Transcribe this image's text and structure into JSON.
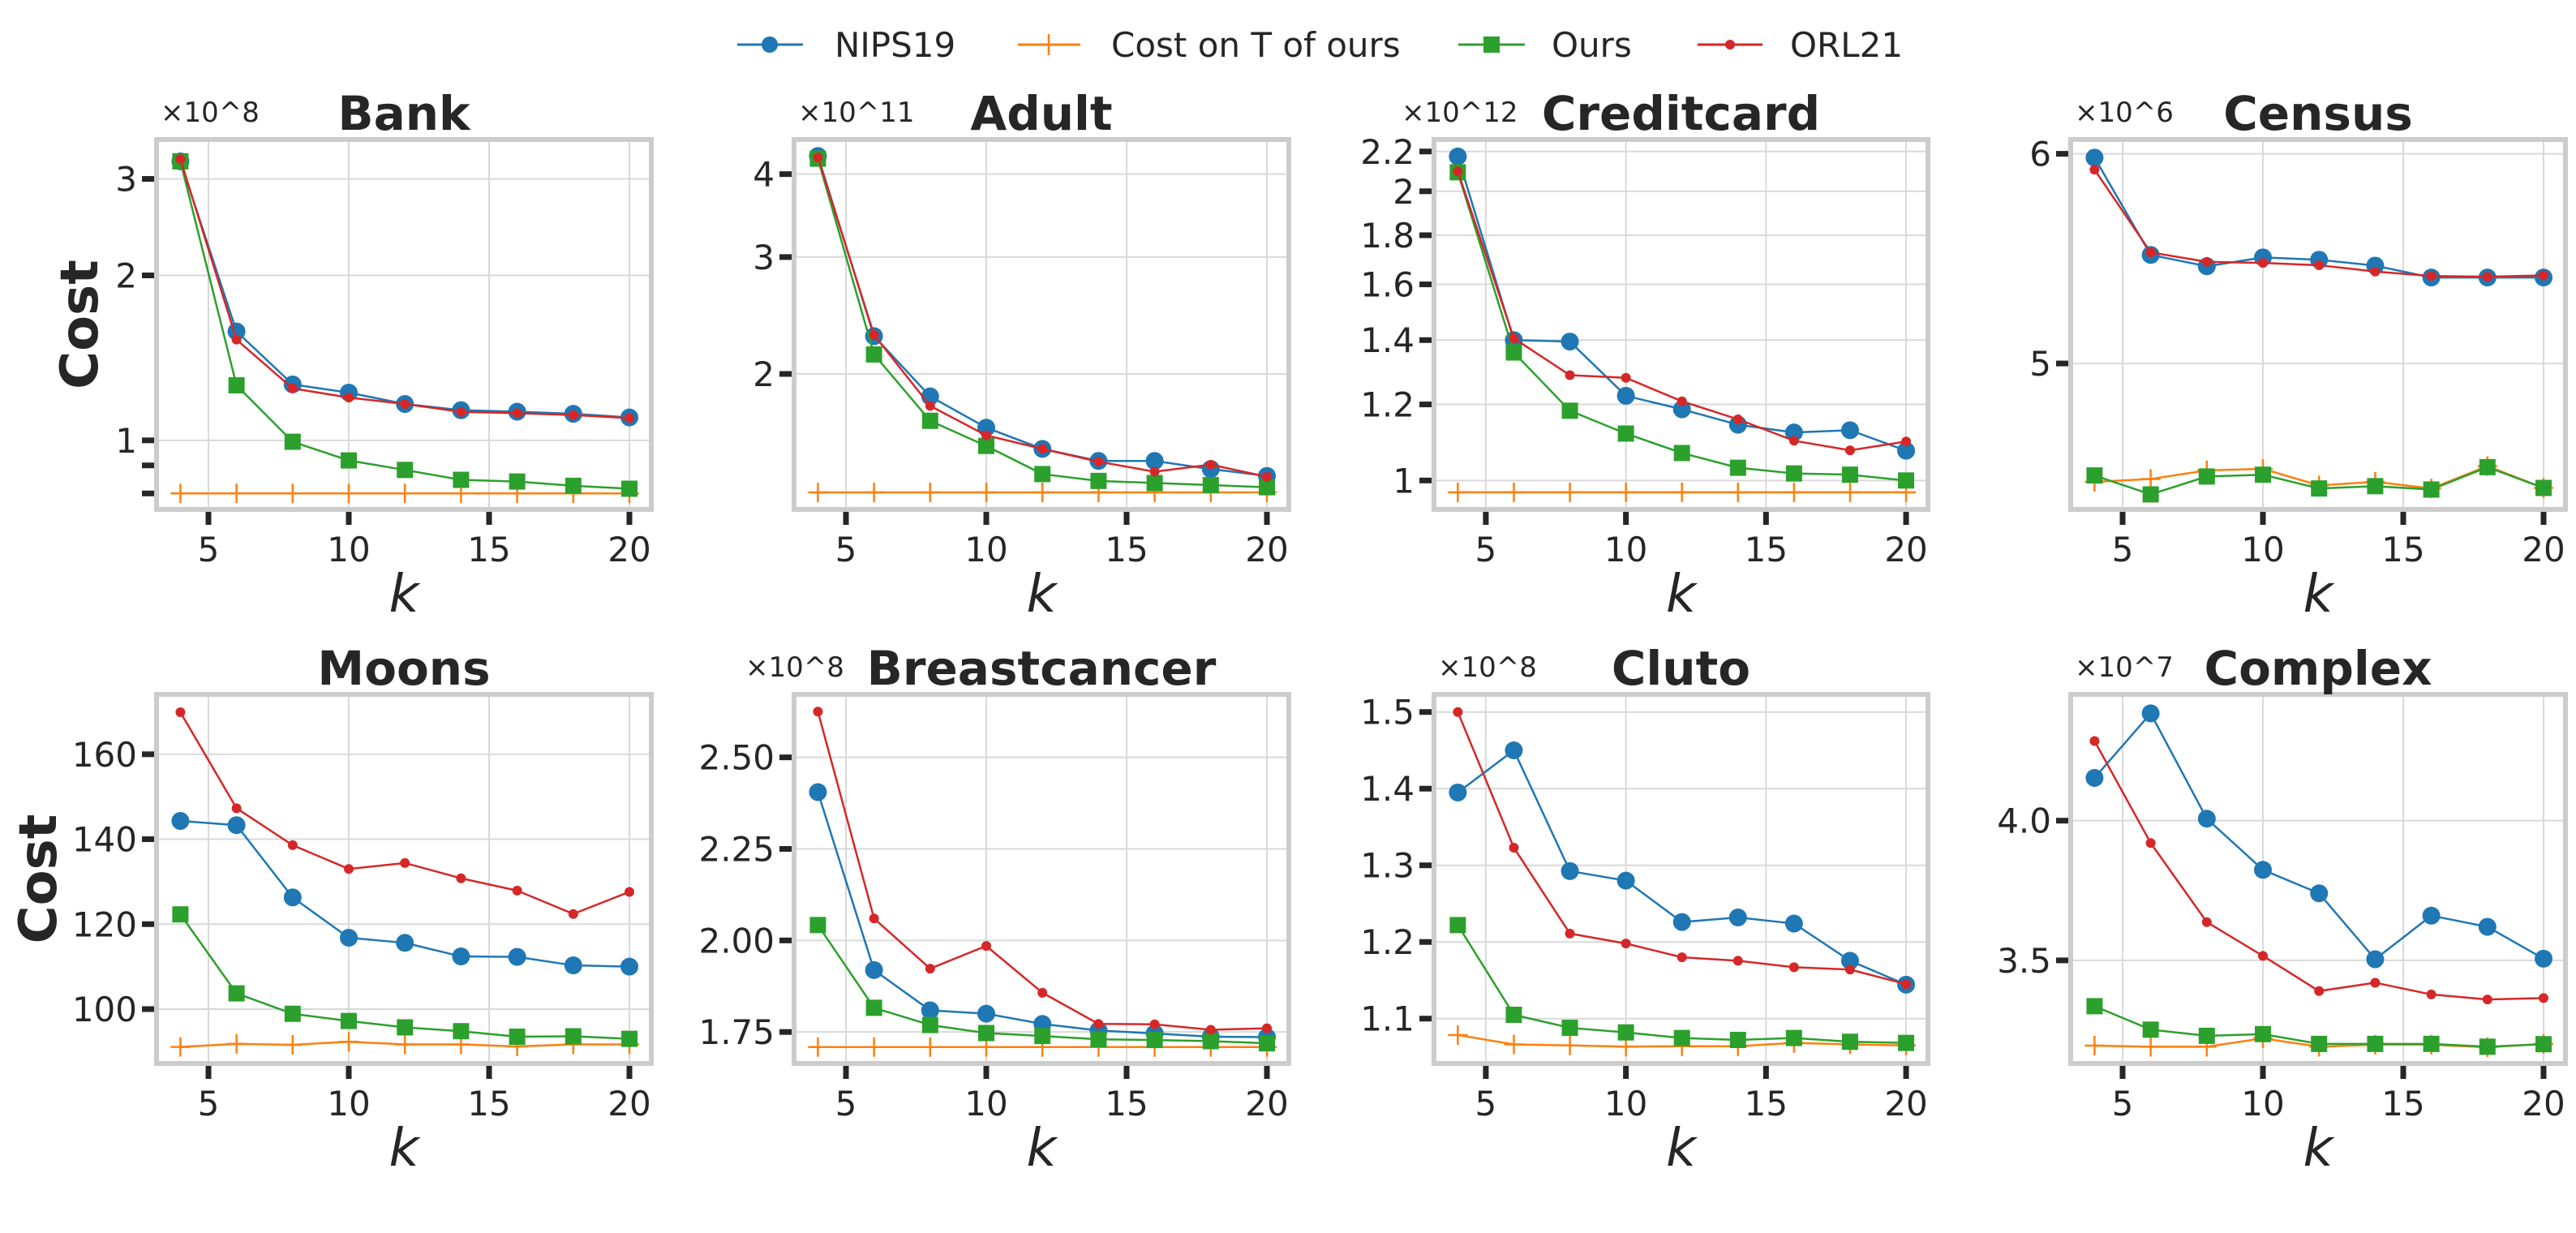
{
  "legend": {
    "placement": "top-center",
    "items": [
      {
        "label": "NIPS19",
        "color": "#1f77b4",
        "marker": "circle"
      },
      {
        "label": "Cost on T of ours",
        "color": "#ff7f0e",
        "marker": "plus"
      },
      {
        "label": "Ours",
        "color": "#2ca02c",
        "marker": "square"
      },
      {
        "label": "ORL21",
        "color": "#d62728",
        "marker": "small-dot"
      }
    ]
  },
  "chart_data": [
    {
      "type": "line",
      "title": "Bank",
      "xlabel": "k",
      "ylabel": "Cost",
      "y_multiplier": "×10^8",
      "y_scale": "log",
      "xlim": [
        3.15,
        20.78
      ],
      "ylim": [
        0.748,
        3.54
      ],
      "grid": true,
      "xticks": [
        5,
        10,
        15,
        20
      ],
      "xtick_labels": [
        "5",
        "10",
        "15",
        "20"
      ],
      "yticks": [
        1,
        2,
        3
      ],
      "ytick_labels": [
        "1",
        "2",
        "3"
      ],
      "minor_yticks": [
        0.8,
        0.9
      ],
      "x": [
        4,
        6,
        8,
        10,
        12,
        14,
        16,
        18,
        20
      ],
      "series": [
        {
          "name": "NIPS19",
          "values": [
            3.23,
            1.58,
            1.265,
            1.222,
            1.165,
            1.135,
            1.128,
            1.118,
            1.101
          ]
        },
        {
          "name": "Cost on T of ours",
          "values": [
            0.8,
            0.8,
            0.8,
            0.8,
            0.8,
            0.8,
            0.8,
            0.8,
            0.8
          ]
        },
        {
          "name": "Ours",
          "values": [
            3.23,
            1.26,
            0.994,
            0.919,
            0.883,
            0.847,
            0.841,
            0.826,
            0.816
          ]
        },
        {
          "name": "ORL21",
          "values": [
            3.26,
            1.527,
            1.244,
            1.197,
            1.165,
            1.127,
            1.121,
            1.112,
            1.098
          ]
        }
      ]
    },
    {
      "type": "line",
      "title": "Adult",
      "xlabel": "k",
      "y_multiplier": "×10^11",
      "y_scale": "log",
      "xlim": [
        3.15,
        20.78
      ],
      "ylim": [
        1.25,
        4.51
      ],
      "grid": true,
      "xticks": [
        5,
        10,
        15,
        20
      ],
      "xtick_labels": [
        "5",
        "10",
        "15",
        "20"
      ],
      "yticks": [
        2,
        3,
        4
      ],
      "ytick_labels": [
        "2",
        "3",
        "4"
      ],
      "x": [
        4,
        6,
        8,
        10,
        12,
        14,
        16,
        18,
        20
      ],
      "series": [
        {
          "name": "NIPS19",
          "values": [
            4.26,
            2.28,
            1.85,
            1.66,
            1.542,
            1.479,
            1.479,
            1.438,
            1.404
          ]
        },
        {
          "name": "Cost on T of ours",
          "values": [
            1.326,
            1.326,
            1.326,
            1.326,
            1.326,
            1.326,
            1.326,
            1.326,
            1.326
          ]
        },
        {
          "name": "Ours",
          "values": [
            4.22,
            2.14,
            1.7,
            1.558,
            1.413,
            1.38,
            1.37,
            1.36,
            1.35
          ]
        },
        {
          "name": "ORL21",
          "values": [
            4.24,
            2.29,
            1.79,
            1.616,
            1.542,
            1.475,
            1.425,
            1.46,
            1.4
          ]
        }
      ]
    },
    {
      "type": "line",
      "title": "Creditcard",
      "xlabel": "k",
      "y_multiplier": "×10^12",
      "y_scale": "log",
      "xlim": [
        3.15,
        20.78
      ],
      "ylim": [
        0.933,
        2.264
      ],
      "grid": true,
      "xticks": [
        5,
        10,
        15,
        20
      ],
      "xtick_labels": [
        "5",
        "10",
        "15",
        "20"
      ],
      "yticks": [
        1,
        1.2,
        1.4,
        1.6,
        1.8,
        2,
        2.2
      ],
      "ytick_labels": [
        "1",
        "1.2",
        "1.4",
        "1.6",
        "1.8",
        "2",
        "2.2"
      ],
      "x": [
        4,
        6,
        8,
        10,
        12,
        14,
        16,
        18,
        20
      ],
      "series": [
        {
          "name": "NIPS19",
          "values": [
            2.174,
            1.4,
            1.395,
            1.225,
            1.186,
            1.143,
            1.122,
            1.128,
            1.074
          ]
        },
        {
          "name": "Cost on T of ours",
          "values": [
            0.972,
            0.972,
            0.972,
            0.972,
            0.972,
            0.972,
            0.972,
            0.972,
            0.972
          ]
        },
        {
          "name": "Ours",
          "values": [
            2.093,
            1.359,
            1.182,
            1.119,
            1.068,
            1.031,
            1.017,
            1.014,
            1.0
          ]
        },
        {
          "name": "ORL21",
          "values": [
            2.098,
            1.406,
            1.287,
            1.279,
            1.209,
            1.158,
            1.1,
            1.075,
            1.098
          ]
        }
      ]
    },
    {
      "type": "line",
      "title": "Census",
      "xlabel": "k",
      "y_multiplier": "×10^6",
      "y_scale": "log",
      "xlim": [
        3.15,
        20.78
      ],
      "ylim": [
        4.404,
        6.075
      ],
      "grid": true,
      "xticks": [
        5,
        10,
        15,
        20
      ],
      "xtick_labels": [
        "5",
        "10",
        "15",
        "20"
      ],
      "yticks": [
        5,
        6
      ],
      "ytick_labels": [
        "5",
        "6"
      ],
      "x": [
        4,
        6,
        8,
        10,
        12,
        14,
        16,
        18,
        20
      ],
      "series": [
        {
          "name": "NIPS19",
          "values": [
            5.98,
            5.495,
            5.441,
            5.483,
            5.472,
            5.444,
            5.388,
            5.388,
            5.388
          ]
        },
        {
          "name": "Cost on T of ours",
          "values": [
            4.511,
            4.522,
            4.556,
            4.562,
            4.497,
            4.511,
            4.485,
            4.573,
            4.487
          ]
        },
        {
          "name": "Ours",
          "values": [
            4.536,
            4.462,
            4.532,
            4.539,
            4.485,
            4.494,
            4.481,
            4.569,
            4.487
          ]
        },
        {
          "name": "ORL21",
          "values": [
            5.918,
            5.507,
            5.462,
            5.457,
            5.446,
            5.416,
            5.395,
            5.392,
            5.398
          ]
        }
      ]
    },
    {
      "type": "line",
      "title": "Moons",
      "xlabel": "k",
      "ylabel": "Cost",
      "y_multiplier": "",
      "y_scale": "linear",
      "xlim": [
        3.15,
        20.78
      ],
      "ylim": [
        87.2,
        174.1
      ],
      "grid": true,
      "xticks": [
        5,
        10,
        15,
        20
      ],
      "xtick_labels": [
        "5",
        "10",
        "15",
        "20"
      ],
      "yticks": [
        100,
        120,
        140,
        160
      ],
      "ytick_labels": [
        "100",
        "120",
        "140",
        "160"
      ],
      "x": [
        4,
        6,
        8,
        10,
        12,
        14,
        16,
        18,
        20
      ],
      "series": [
        {
          "name": "NIPS19",
          "values": [
            144.3,
            143.3,
            126.3,
            116.8,
            115.6,
            112.4,
            112.3,
            110.3,
            110.0
          ]
        },
        {
          "name": "Cost on T of ours",
          "values": [
            91.1,
            91.8,
            91.6,
            92.3,
            91.7,
            91.7,
            91.2,
            91.7,
            91.7
          ]
        },
        {
          "name": "Ours",
          "values": [
            122.3,
            103.7,
            98.9,
            97.2,
            95.7,
            94.8,
            93.5,
            93.6,
            93.0
          ]
        },
        {
          "name": "ORL21",
          "values": [
            169.9,
            147.3,
            138.6,
            133.0,
            134.4,
            130.8,
            127.9,
            122.4,
            127.6
          ]
        }
      ]
    },
    {
      "type": "line",
      "title": "Breastcancer",
      "xlabel": "k",
      "y_multiplier": "×10^8",
      "y_scale": "linear",
      "xlim": [
        3.15,
        20.78
      ],
      "ylim": [
        1.664,
        2.672
      ],
      "grid": true,
      "xticks": [
        5,
        10,
        15,
        20
      ],
      "xtick_labels": [
        "5",
        "10",
        "15",
        "20"
      ],
      "yticks": [
        1.75,
        2.0,
        2.25,
        2.5
      ],
      "ytick_labels": [
        "1.75",
        "2.00",
        "2.25",
        "2.50"
      ],
      "x": [
        4,
        6,
        8,
        10,
        12,
        14,
        16,
        18,
        20
      ],
      "series": [
        {
          "name": "NIPS19",
          "values": [
            2.405,
            1.919,
            1.809,
            1.8,
            1.772,
            1.754,
            1.746,
            1.737,
            1.736
          ]
        },
        {
          "name": "Cost on T of ours",
          "values": [
            1.709,
            1.709,
            1.709,
            1.709,
            1.709,
            1.709,
            1.709,
            1.709,
            1.709
          ]
        },
        {
          "name": "Ours",
          "values": [
            2.042,
            1.816,
            1.769,
            1.747,
            1.739,
            1.73,
            1.728,
            1.725,
            1.719
          ]
        },
        {
          "name": "ORL21",
          "values": [
            2.625,
            2.06,
            1.923,
            1.985,
            1.857,
            1.772,
            1.771,
            1.756,
            1.76
          ]
        }
      ]
    },
    {
      "type": "line",
      "title": "Cluto",
      "xlabel": "k",
      "y_multiplier": "×10^8",
      "y_scale": "linear",
      "xlim": [
        3.15,
        20.78
      ],
      "ylim": [
        1.0415,
        1.523
      ],
      "grid": true,
      "xticks": [
        5,
        10,
        15,
        20
      ],
      "xtick_labels": [
        "5",
        "10",
        "15",
        "20"
      ],
      "yticks": [
        1.1,
        1.2,
        1.3,
        1.4,
        1.5
      ],
      "ytick_labels": [
        "1.1",
        "1.2",
        "1.3",
        "1.4",
        "1.5"
      ],
      "x": [
        4,
        6,
        8,
        10,
        12,
        14,
        16,
        18,
        20
      ],
      "series": [
        {
          "name": "NIPS19",
          "values": [
            1.395,
            1.45,
            1.2925,
            1.28,
            1.226,
            1.232,
            1.224,
            1.1755,
            1.1443
          ]
        },
        {
          "name": "Cost on T of ours",
          "values": [
            1.0786,
            1.0664,
            1.065,
            1.0635,
            1.064,
            1.064,
            1.0683,
            1.0664,
            1.065
          ]
        },
        {
          "name": "Ours",
          "values": [
            1.222,
            1.105,
            1.088,
            1.082,
            1.0747,
            1.0722,
            1.0747,
            1.0698,
            1.0683
          ]
        },
        {
          "name": "ORL21",
          "values": [
            1.5,
            1.323,
            1.211,
            1.198,
            1.18,
            1.1755,
            1.167,
            1.164,
            1.145
          ]
        }
      ]
    },
    {
      "type": "line",
      "title": "Complex",
      "xlabel": "k",
      "y_multiplier": "×10^7",
      "y_scale": "linear",
      "xlim": [
        3.15,
        20.78
      ],
      "ylim": [
        3.131,
        4.452
      ],
      "grid": true,
      "xticks": [
        5,
        10,
        15,
        20
      ],
      "xtick_labels": [
        "5",
        "10",
        "15",
        "20"
      ],
      "yticks": [
        3.5,
        4.0
      ],
      "ytick_labels": [
        "3.5",
        "4.0"
      ],
      "x": [
        4,
        6,
        8,
        10,
        12,
        14,
        16,
        18,
        20
      ],
      "series": [
        {
          "name": "NIPS19",
          "values": [
            4.153,
            4.384,
            4.007,
            3.824,
            3.74,
            3.504,
            3.66,
            3.62,
            3.506
          ]
        },
        {
          "name": "Cost on T of ours",
          "values": [
            3.195,
            3.191,
            3.191,
            3.221,
            3.191,
            3.198,
            3.198,
            3.189,
            3.201
          ]
        },
        {
          "name": "Ours",
          "values": [
            3.336,
            3.252,
            3.23,
            3.236,
            3.201,
            3.201,
            3.201,
            3.191,
            3.2
          ]
        },
        {
          "name": "ORL21",
          "values": [
            4.285,
            3.92,
            3.637,
            3.516,
            3.39,
            3.42,
            3.378,
            3.36,
            3.365
          ]
        }
      ]
    }
  ]
}
